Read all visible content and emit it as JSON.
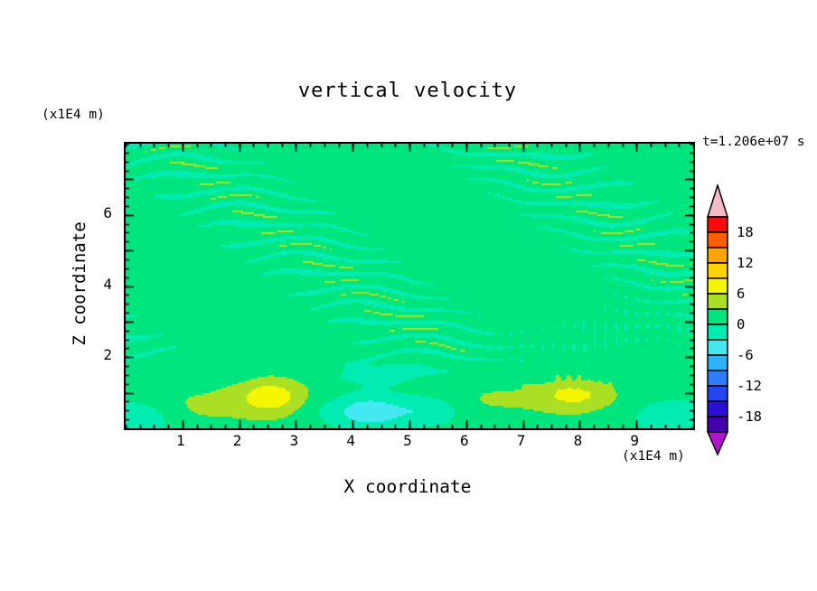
{
  "chart_data": {
    "type": "heatmap",
    "title": "vertical velocity",
    "timestamp": "t=1.206e+07 s",
    "xlabel": "X coordinate",
    "x_unit": "(x1E4 m)",
    "ylabel": "Z coordinate",
    "y_unit": "(x1E4 m)",
    "x_range": [
      0,
      10
    ],
    "z_range": [
      0,
      8
    ],
    "x_minor_step": 0.25,
    "z_minor_step": 0.25,
    "x_tick_values": [
      1,
      2,
      3,
      4,
      5,
      6,
      7,
      8,
      9
    ],
    "x_tick_labels": [
      "1",
      "2",
      "3",
      "4",
      "5",
      "6",
      "7",
      "8",
      "9"
    ],
    "z_major_tick_values": [
      1,
      2,
      3,
      4,
      5,
      6,
      7
    ],
    "z_labeled_tick_values": [
      2,
      4,
      6
    ],
    "z_tick_labels": [
      "2",
      "4",
      "6"
    ],
    "contour_interval": 3,
    "grid": false,
    "legend_position": "right-colorbar",
    "colorbar": {
      "min": -21,
      "max": 21,
      "step": 3,
      "labels": [
        "18",
        "12",
        "6",
        "0",
        "-6",
        "-12",
        "-18"
      ],
      "colors_low_to_high": [
        "#4400aa",
        "#2a10d8",
        "#2446f2",
        "#2e7dff",
        "#30b2fb",
        "#44e8f0",
        "#00ecb2",
        "#00e57e",
        "#abdf24",
        "#f6f600",
        "#ffd200",
        "#ffa400",
        "#ff5e00",
        "#f90a0b"
      ],
      "over_color": "#f6bac6",
      "under_color": "#b312cf"
    },
    "field": {
      "description": "vertical velocity section: near-zero streaky layered flow above z=2, updraft maxima (+6 to +9) near bottom at x=2.5 and x=8, weak downdrafts (-3 to -6) near bottom at x=0.2, 4.3, 5.4, 9.8, fine wave ripples around x=7.5-9.5 z=2-3.5",
      "base": 1.15,
      "streaks": {
        "zmin": 1.0,
        "fade": 1.2,
        "kz": 14,
        "kx": 0.4,
        "amp": 1.75,
        "amp_bias": 0.62,
        "amp_mod": 0.5,
        "mod_kx": 1.05,
        "mod_kz": 0.9,
        "warp1": 2.0,
        "warp1_kx": 1.6,
        "warp1_kz": 1.2,
        "warp2": 1.1,
        "warp2_kx": 3.1,
        "warp2_kz": 2.2
      },
      "ripple": {
        "x": 8.35,
        "z": 2.6,
        "rx": 0.95,
        "rz": 0.75,
        "amp": 1.35,
        "kx": 34
      },
      "bottom_wave": {
        "amp": 0.55,
        "kx": 2.6,
        "z": 0.55,
        "rz": 0.55
      },
      "blobs": [
        {
          "x": 2.45,
          "z": 0.85,
          "rx": 0.75,
          "rz": 0.5,
          "amp": 2.3
        },
        {
          "x": 2.55,
          "z": 0.9,
          "rx": 0.34,
          "rz": 0.28,
          "amp": 4.6
        },
        {
          "x": 7.95,
          "z": 0.9,
          "rx": 0.85,
          "rz": 0.42,
          "amp": 2.0
        },
        {
          "x": 7.9,
          "z": 0.95,
          "rx": 0.45,
          "rz": 0.25,
          "amp": 3.2
        },
        {
          "x": 6.4,
          "z": 0.75,
          "rx": 0.65,
          "rz": 0.4,
          "amp": 2.2
        },
        {
          "x": 1.3,
          "z": 0.55,
          "rx": 0.9,
          "rz": 0.45,
          "amp": 1.9
        },
        {
          "x": 4.35,
          "z": 0.45,
          "rx": 0.4,
          "rz": 0.32,
          "amp": -5.0
        },
        {
          "x": 5.35,
          "z": 0.5,
          "rx": 0.42,
          "rz": 0.3,
          "amp": -4.6
        },
        {
          "x": 0.25,
          "z": 0.3,
          "rx": 0.45,
          "rz": 0.35,
          "amp": -4.6
        },
        {
          "x": 9.85,
          "z": 0.35,
          "rx": 0.5,
          "rz": 0.3,
          "amp": -4.4
        },
        {
          "x": 4.55,
          "z": 1.55,
          "rx": 0.6,
          "rz": 0.22,
          "amp": -3.0
        },
        {
          "x": 3.6,
          "z": 0.5,
          "rx": 0.5,
          "rz": 0.3,
          "amp": -2.2
        }
      ]
    }
  }
}
